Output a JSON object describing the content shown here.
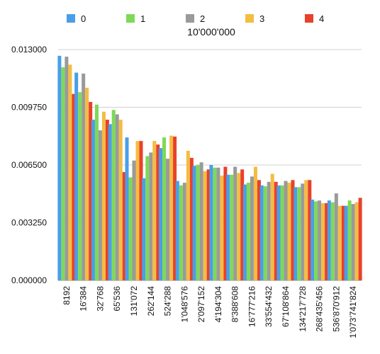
{
  "chart_data": {
    "type": "bar",
    "title": "10'000'000",
    "xlabel": "",
    "ylabel": "",
    "ylim": [
      0,
      0.013
    ],
    "y_ticks": [
      "0.000000",
      "0.003250",
      "0.006500",
      "0.009750",
      "0.013000"
    ],
    "y_tick_values": [
      0,
      0.00325,
      0.0065,
      0.00975,
      0.013
    ],
    "grid": true,
    "legend_position": "top",
    "categories": [
      "8192",
      "16'384",
      "32'768",
      "65'536",
      "131'072",
      "262'144",
      "524'288",
      "1'048'576",
      "2'097'152",
      "4'194'304",
      "8'388'608",
      "16'777'216",
      "33'554'432",
      "67'108'864",
      "134'217'728",
      "268'435'456",
      "536'870'912",
      "1'073'741'824"
    ],
    "series": [
      {
        "name": "0",
        "color": "#4a9ee8",
        "values": [
          0.01265,
          0.0117,
          0.00905,
          0.0088,
          0.00805,
          0.00575,
          0.00745,
          0.0056,
          0.00645,
          0.0065,
          0.00595,
          0.0054,
          0.00535,
          0.00535,
          0.00525,
          0.00455,
          0.0045,
          0.0042
        ]
      },
      {
        "name": "1",
        "color": "#7ed957",
        "values": [
          0.012,
          0.0106,
          0.0099,
          0.0096,
          0.0058,
          0.007,
          0.00805,
          0.00535,
          0.0065,
          0.00635,
          0.00595,
          0.0055,
          0.0053,
          0.00535,
          0.00525,
          0.00445,
          0.0044,
          0.0045
        ]
      },
      {
        "name": "2",
        "color": "#9a9a9a",
        "values": [
          0.0126,
          0.01165,
          0.00845,
          0.00935,
          0.00675,
          0.0072,
          0.00685,
          0.0055,
          0.00665,
          0.00635,
          0.0064,
          0.00585,
          0.00555,
          0.0056,
          0.00545,
          0.0045,
          0.0049,
          0.0043
        ]
      },
      {
        "name": "3",
        "color": "#f3bd43",
        "values": [
          0.01215,
          0.01085,
          0.0095,
          0.00905,
          0.00785,
          0.00785,
          0.00815,
          0.0073,
          0.00615,
          0.0059,
          0.00605,
          0.0064,
          0.006,
          0.0055,
          0.00565,
          0.00435,
          0.0042,
          0.0044
        ]
      },
      {
        "name": "4",
        "color": "#e8412c",
        "values": [
          0.0105,
          0.01005,
          0.00905,
          0.0061,
          0.00785,
          0.00765,
          0.0081,
          0.0069,
          0.00625,
          0.0064,
          0.00625,
          0.00565,
          0.00555,
          0.00565,
          0.00565,
          0.00435,
          0.0042,
          0.00465
        ]
      }
    ]
  }
}
